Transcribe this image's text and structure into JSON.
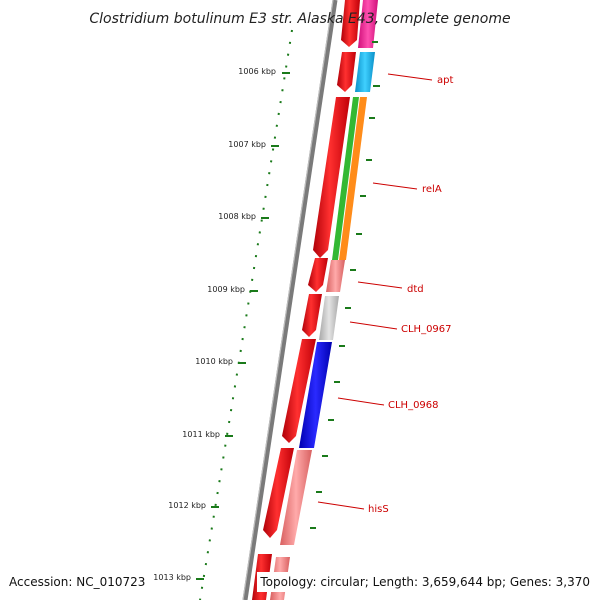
{
  "title": "Clostridium botulinum E3 str. Alaska E43, complete genome",
  "footer": {
    "accession": "Accession: NC_010723",
    "topology": "Topology: circular; Length: 3,659,644 bp; Genes: 3,370"
  },
  "ticks": [
    {
      "label": "1006 kbp"
    },
    {
      "label": "1007 kbp"
    },
    {
      "label": "1008 kbp"
    },
    {
      "label": "1009 kbp"
    },
    {
      "label": "1010 kbp"
    },
    {
      "label": "1011 kbp"
    },
    {
      "label": "1012 kbp"
    },
    {
      "label": "1013 kbp"
    }
  ],
  "gene_labels": [
    {
      "name": "apt"
    },
    {
      "name": "relA"
    },
    {
      "name": "dtd"
    },
    {
      "name": "CLH_0967"
    },
    {
      "name": "CLH_0968"
    },
    {
      "name": "hisS"
    }
  ],
  "colors": {
    "backbone": "#7a7a7a",
    "tick_green": "#1a7a1a",
    "cds_red": "#e8000b",
    "label_red": "#cc0000",
    "magenta": "#ff1493",
    "cyan": "#1ab0e8",
    "green": "#33b833",
    "orange": "#ff8c1a",
    "pink": "#f08080",
    "light_gray": "#c8c8c8",
    "blue": "#0000e6"
  }
}
